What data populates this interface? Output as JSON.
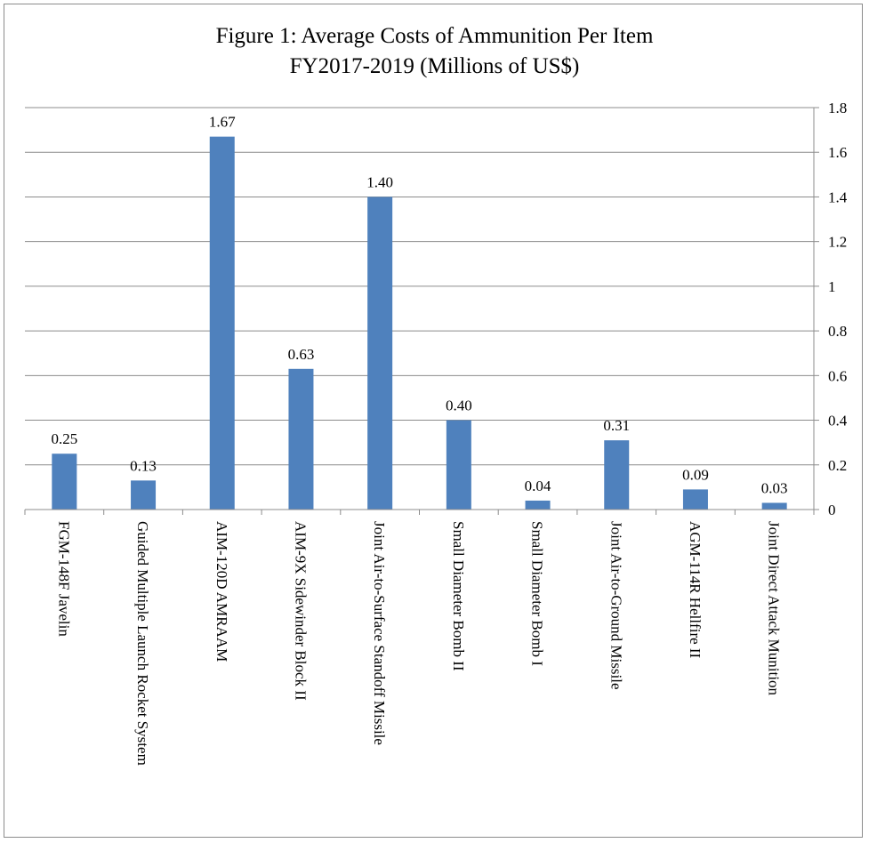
{
  "chart_data": {
    "type": "bar",
    "title_lines": [
      "Figure 1: Average Costs of Ammunition Per Item",
      "FY2017-2019 (Millions of US$)"
    ],
    "categories": [
      "FGM-148F Javelin",
      "Guided Multiple Launch Rocket System",
      "AIM-120D AMRAAM",
      "AIM-9X Sidewinder Block II",
      "Joint Air-to-Surface Standoff Missile",
      "Small Diameter Bomb II",
      "Small Diameter Bomb I",
      "Joint Air-to-Ground Missile",
      "AGM-114R Hellfire II",
      "Joint Direct Attack Munition"
    ],
    "values": [
      0.25,
      0.13,
      1.67,
      0.63,
      1.4,
      0.4,
      0.04,
      0.31,
      0.09,
      0.03
    ],
    "data_labels": [
      "0.25",
      "0.13",
      "1.67",
      "0.63",
      "1.40",
      "0.40",
      "0.04",
      "0.31",
      "0.09",
      "0.03"
    ],
    "xlabel": "",
    "ylabel": "",
    "ylim": [
      0,
      1.8
    ],
    "yticks": [
      "0",
      "0.2",
      "0.4",
      "0.6",
      "0.8",
      "1",
      "1.2",
      "1.4",
      "1.6",
      "1.8"
    ],
    "yaxis_side": "right",
    "grid": true,
    "legend": "none",
    "bar_color": "#4F81BD"
  }
}
